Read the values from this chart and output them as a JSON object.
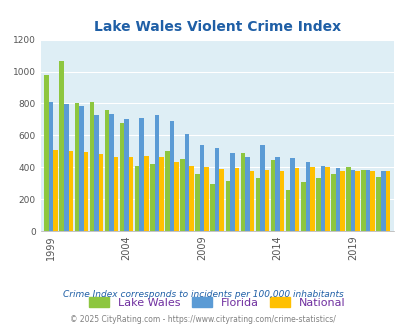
{
  "title": "Lake Wales Violent Crime Index",
  "years": [
    1999,
    2000,
    2001,
    2002,
    2003,
    2004,
    2005,
    2006,
    2007,
    2008,
    2009,
    2010,
    2011,
    2012,
    2013,
    2014,
    2015,
    2016,
    2017,
    2018,
    2019,
    2020,
    2021
  ],
  "lake_wales": [
    975,
    1065,
    800,
    810,
    760,
    680,
    410,
    420,
    500,
    450,
    355,
    295,
    315,
    490,
    330,
    445,
    255,
    310,
    330,
    355,
    400,
    385,
    340
  ],
  "florida": [
    810,
    795,
    785,
    730,
    735,
    700,
    710,
    730,
    690,
    610,
    540,
    520,
    490,
    465,
    540,
    465,
    460,
    435,
    410,
    395,
    380,
    380,
    375
  ],
  "national": [
    510,
    500,
    495,
    480,
    465,
    465,
    470,
    465,
    430,
    405,
    400,
    390,
    395,
    375,
    380,
    375,
    395,
    400,
    400,
    375,
    375,
    375,
    375
  ],
  "color_lw": "#8dc63f",
  "color_fl": "#5b9bd5",
  "color_nat": "#ffc000",
  "plot_bg": "#deeef5",
  "ylim": [
    0,
    1200
  ],
  "yticks": [
    0,
    200,
    400,
    600,
    800,
    1000,
    1200
  ],
  "xtick_years": [
    1999,
    2004,
    2009,
    2014,
    2019
  ],
  "footnote1": "Crime Index corresponds to incidents per 100,000 inhabitants",
  "footnote2": "© 2025 CityRating.com - https://www.cityrating.com/crime-statistics/",
  "legend_labels": [
    "Lake Wales",
    "Florida",
    "National"
  ],
  "legend_label_color": "#7030a0",
  "title_color": "#1f5fa6",
  "footnote1_color": "#1f5fa6",
  "footnote2_color": "#808080"
}
